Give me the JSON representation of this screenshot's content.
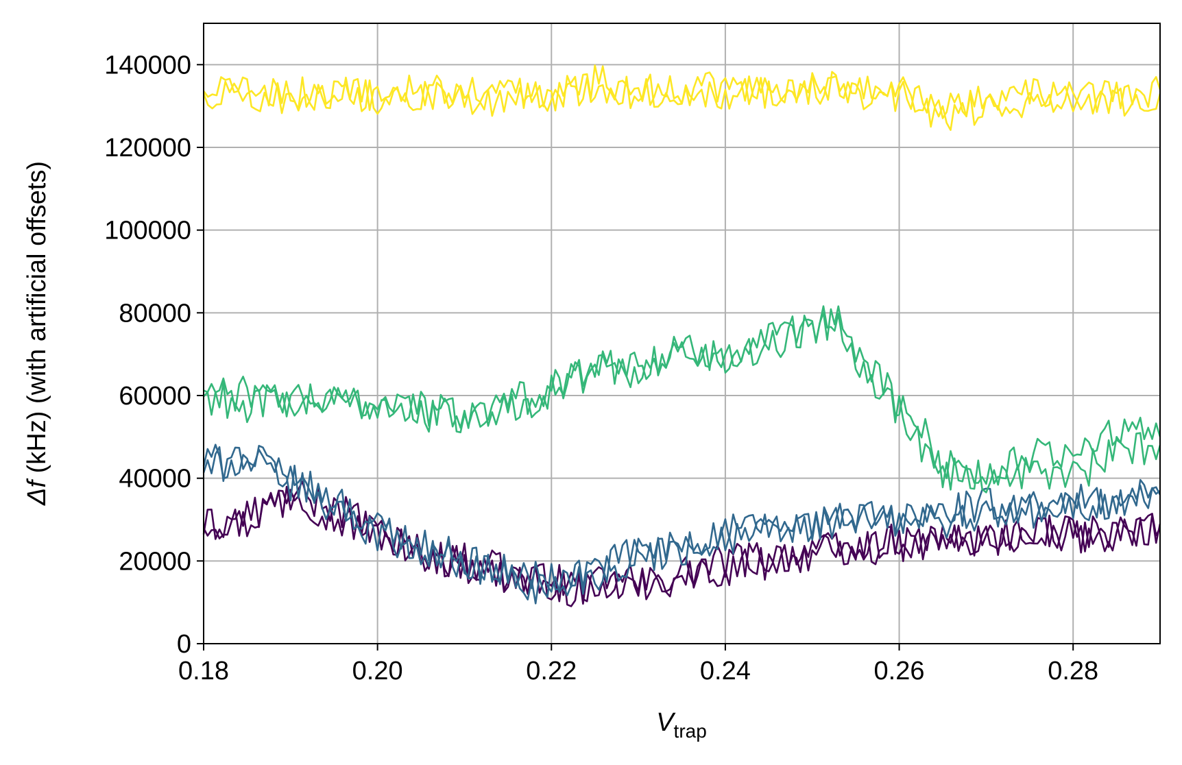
{
  "chart_data": {
    "type": "line",
    "xlabel": {
      "symbol": "V",
      "subscript": "trap"
    },
    "ylabel": {
      "symbol": "Δf",
      "rest": " (kHz) (with artificial offsets)"
    },
    "xlim": [
      0.18,
      0.29
    ],
    "ylim": [
      0,
      150000
    ],
    "xticks": [
      0.18,
      0.2,
      0.22,
      0.24,
      0.26,
      0.28
    ],
    "xtick_labels": [
      "0.18",
      "0.20",
      "0.22",
      "0.24",
      "0.26",
      "0.28"
    ],
    "yticks": [
      0,
      20000,
      40000,
      60000,
      80000,
      100000,
      120000,
      140000
    ],
    "ytick_labels": [
      "0",
      "20000",
      "40000",
      "60000",
      "80000",
      "100000",
      "120000",
      "140000"
    ],
    "grid": true,
    "legend": "none",
    "series": [
      {
        "color": "#440154",
        "x": [
          0.18,
          0.185,
          0.19,
          0.195,
          0.2,
          0.205,
          0.21,
          0.215,
          0.22,
          0.225,
          0.23,
          0.235,
          0.24,
          0.245,
          0.25,
          0.255,
          0.26,
          0.265,
          0.27,
          0.275,
          0.28,
          0.285,
          0.29
        ],
        "y": [
          30000,
          29000,
          38000,
          30000,
          27000,
          22000,
          19000,
          16000,
          15000,
          14000,
          14000,
          17000,
          20000,
          21000,
          22000,
          23000,
          24000,
          25000,
          25000,
          26000,
          26000,
          27000,
          28000
        ]
      },
      {
        "color": "#440154",
        "x": [
          0.18,
          0.185,
          0.19,
          0.195,
          0.2,
          0.205,
          0.21,
          0.215,
          0.22,
          0.225,
          0.23,
          0.235,
          0.24,
          0.245,
          0.25,
          0.255,
          0.26,
          0.265,
          0.27,
          0.275,
          0.28,
          0.285,
          0.29
        ],
        "y": [
          28000,
          31000,
          35000,
          34000,
          26000,
          21000,
          20000,
          17000,
          14000,
          13000,
          15000,
          16000,
          18000,
          20000,
          22000,
          24000,
          25000,
          24000,
          26000,
          27000,
          27000,
          26000,
          29000
        ]
      },
      {
        "color": "#31688e",
        "x": [
          0.18,
          0.185,
          0.19,
          0.195,
          0.2,
          0.205,
          0.21,
          0.215,
          0.22,
          0.225,
          0.23,
          0.235,
          0.24,
          0.245,
          0.25,
          0.255,
          0.26,
          0.265,
          0.27,
          0.275,
          0.28,
          0.285,
          0.29
        ],
        "y": [
          44000,
          44000,
          39000,
          35000,
          28000,
          24000,
          20000,
          17000,
          15000,
          18000,
          22000,
          24000,
          27000,
          28000,
          29000,
          30000,
          29000,
          30000,
          31000,
          32000,
          33000,
          34000,
          36000
        ]
      },
      {
        "color": "#31688e",
        "x": [
          0.18,
          0.185,
          0.19,
          0.195,
          0.2,
          0.205,
          0.21,
          0.215,
          0.22,
          0.225,
          0.23,
          0.235,
          0.24,
          0.245,
          0.25,
          0.255,
          0.26,
          0.265,
          0.27,
          0.275,
          0.28,
          0.285,
          0.29
        ],
        "y": [
          42000,
          46000,
          40000,
          33000,
          27000,
          23000,
          19000,
          16000,
          13000,
          17000,
          21000,
          23000,
          25000,
          27000,
          28000,
          31000,
          30000,
          32000,
          33000,
          33000,
          34000,
          35000,
          37000
        ]
      },
      {
        "color": "#35b779",
        "x": [
          0.18,
          0.185,
          0.19,
          0.195,
          0.2,
          0.205,
          0.21,
          0.215,
          0.22,
          0.225,
          0.23,
          0.235,
          0.24,
          0.245,
          0.25,
          0.253,
          0.255,
          0.26,
          0.263,
          0.265,
          0.27,
          0.275,
          0.28,
          0.285,
          0.29
        ],
        "y": [
          60000,
          58000,
          59000,
          58000,
          58000,
          57000,
          55000,
          57000,
          61000,
          66000,
          68000,
          70000,
          69000,
          72000,
          77000,
          79000,
          70000,
          56000,
          47000,
          42000,
          40000,
          42000,
          40000,
          46000,
          48000
        ]
      },
      {
        "color": "#35b779",
        "x": [
          0.18,
          0.185,
          0.19,
          0.195,
          0.2,
          0.205,
          0.21,
          0.215,
          0.22,
          0.225,
          0.23,
          0.235,
          0.24,
          0.245,
          0.25,
          0.253,
          0.255,
          0.26,
          0.263,
          0.265,
          0.27,
          0.275,
          0.28,
          0.285,
          0.29
        ],
        "y": [
          61000,
          60000,
          58000,
          59000,
          59000,
          56000,
          54000,
          58000,
          62000,
          68000,
          66000,
          71000,
          70000,
          73000,
          75000,
          78000,
          72000,
          58000,
          50000,
          44000,
          41000,
          45000,
          47000,
          51000,
          50000
        ]
      },
      {
        "color": "#fde725",
        "x": [
          0.18,
          0.182,
          0.184,
          0.186,
          0.188,
          0.19,
          0.195,
          0.2,
          0.205,
          0.21,
          0.215,
          0.22,
          0.225,
          0.23,
          0.235,
          0.24,
          0.245,
          0.25,
          0.255,
          0.26,
          0.265,
          0.27,
          0.275,
          0.28,
          0.285,
          0.29
        ],
        "y": [
          133000,
          134000,
          132000,
          135000,
          133000,
          131000,
          132000,
          133000,
          134000,
          133000,
          134000,
          132000,
          135000,
          133000,
          134000,
          133000,
          135000,
          134000,
          133000,
          132000,
          131000,
          132000,
          133000,
          132000,
          133000,
          134000
        ]
      },
      {
        "color": "#fde725",
        "x": [
          0.18,
          0.182,
          0.184,
          0.186,
          0.188,
          0.19,
          0.195,
          0.2,
          0.205,
          0.21,
          0.215,
          0.22,
          0.225,
          0.23,
          0.235,
          0.24,
          0.245,
          0.25,
          0.255,
          0.26,
          0.265,
          0.27,
          0.275,
          0.28,
          0.285,
          0.29
        ],
        "y": [
          132000,
          133000,
          135000,
          132000,
          134000,
          133000,
          134000,
          132000,
          133000,
          131000,
          130000,
          133000,
          136000,
          134000,
          133000,
          135000,
          133000,
          134000,
          136000,
          134000,
          127000,
          130000,
          131000,
          133000,
          131000,
          133000
        ]
      }
    ]
  }
}
